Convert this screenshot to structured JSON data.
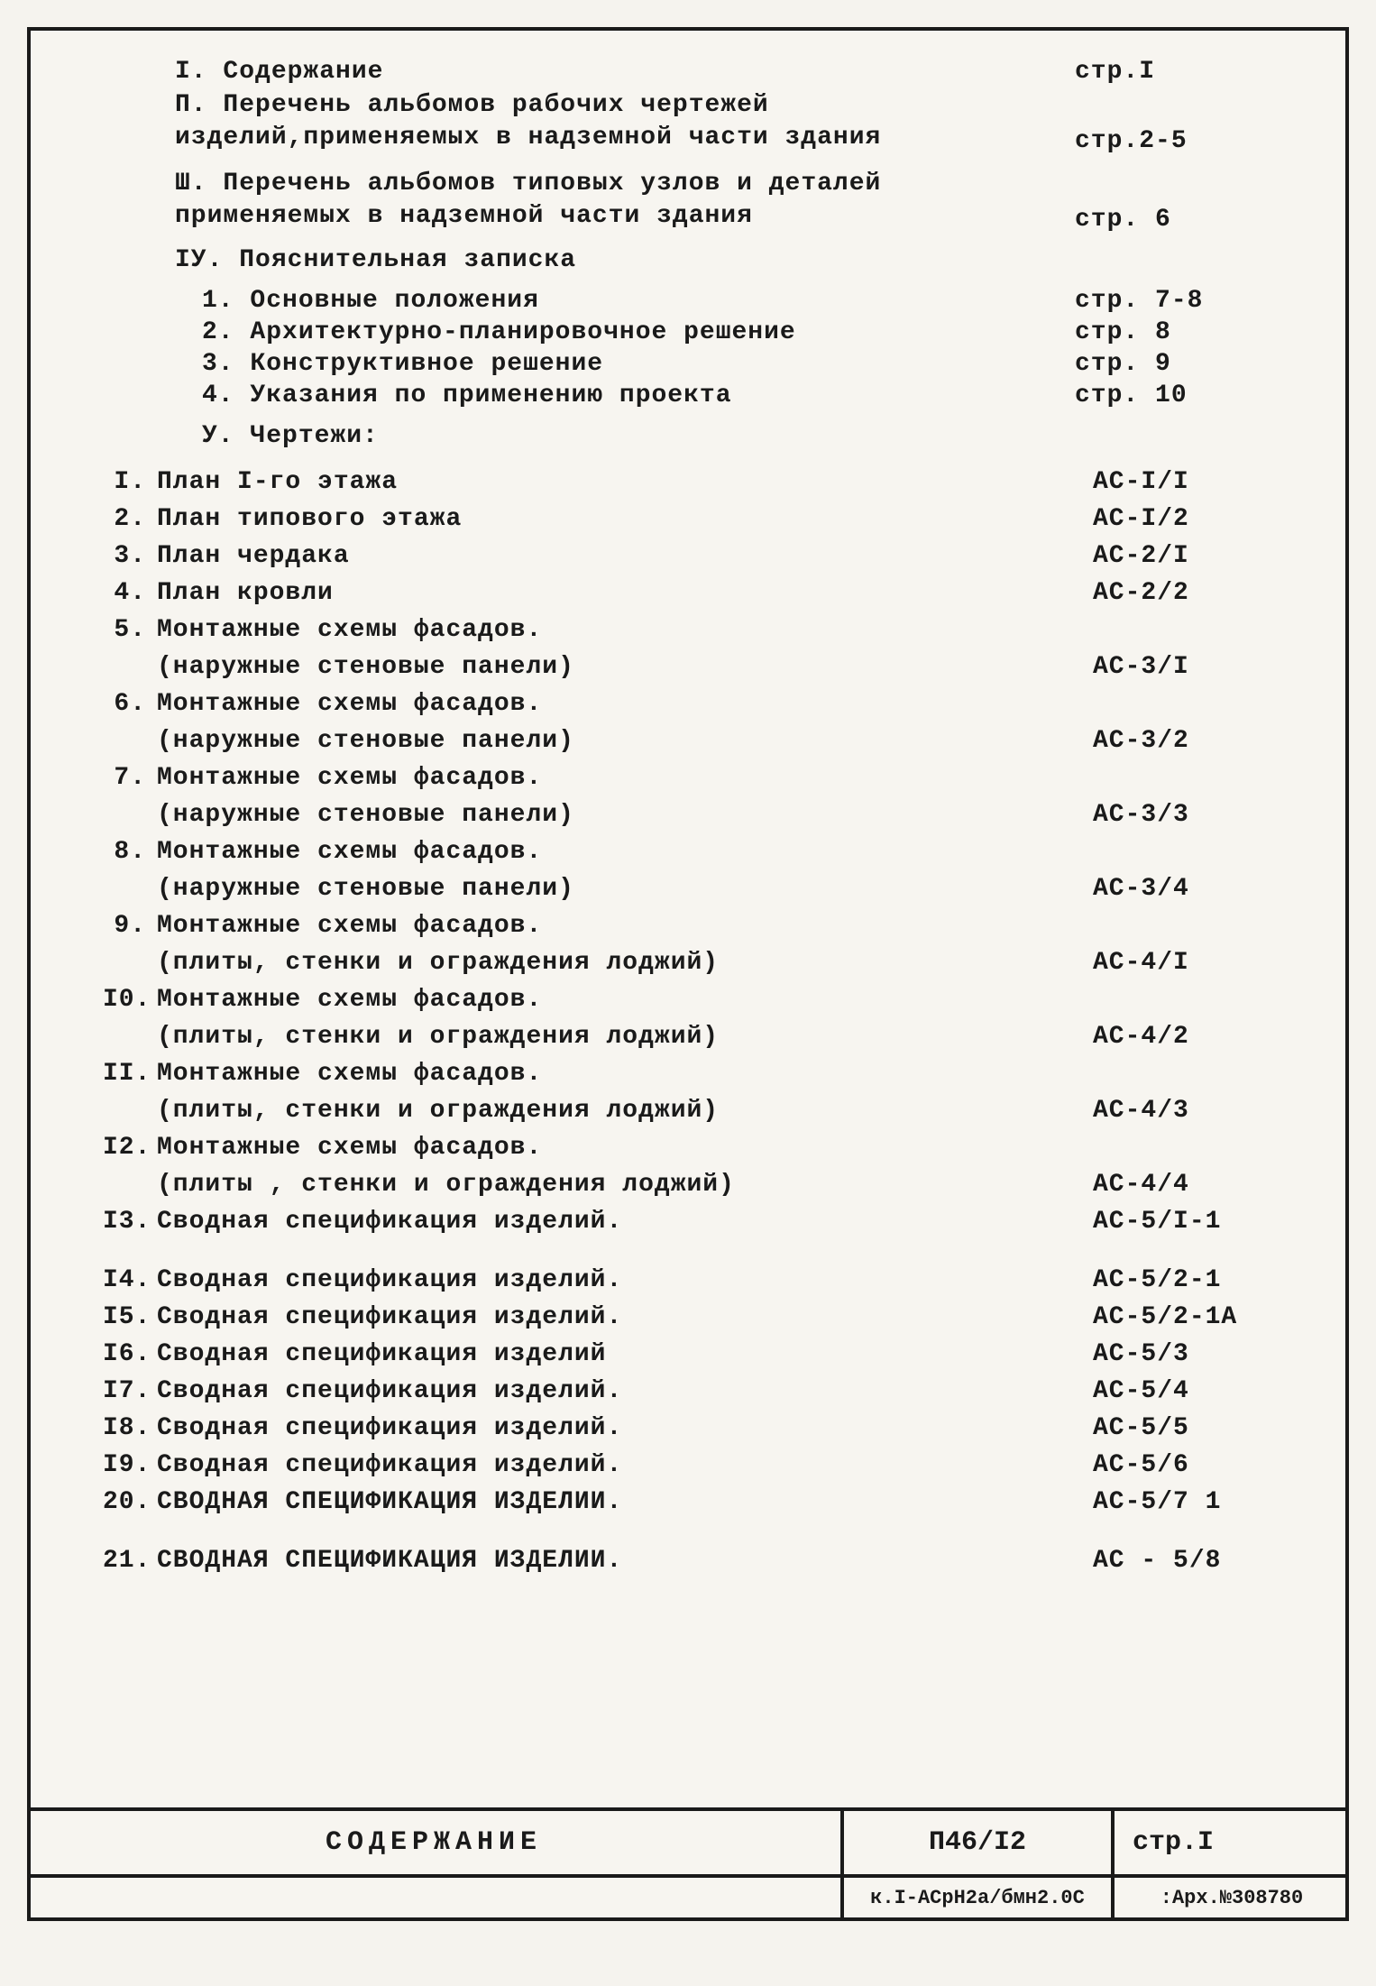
{
  "sections": {
    "s1": {
      "num": "І.",
      "label": "Содержание",
      "page": "стр.І"
    },
    "s2": {
      "num": "П.",
      "label": "Перечень альбомов рабочих чертежей изделий,применяемых в надземной части здания",
      "page": "стр.2-5"
    },
    "s3": {
      "num": "Ш.",
      "label": "Перечень альбомов типовых узлов и деталей применяемых в надземной части здания",
      "page": "стр. 6"
    },
    "s4": {
      "num": "ІУ.",
      "label": "Пояснительная записка"
    },
    "s4_1": {
      "num": "1.",
      "label": "Основные положения",
      "page": "стр. 7-8"
    },
    "s4_2": {
      "num": "2.",
      "label": "Архитектурно-планировочное решение",
      "page": "стр. 8"
    },
    "s4_3": {
      "num": "3.",
      "label": "Конструктивное решение",
      "page": "стр. 9"
    },
    "s4_4": {
      "num": "4.",
      "label": "Указания по применению проекта",
      "page": "стр. 10"
    },
    "s5": {
      "num": "У.",
      "label": "Чертежи:"
    }
  },
  "drawings": [
    {
      "num": "І.",
      "label": "План І-го этажа",
      "code": "АС-І/І"
    },
    {
      "num": "2.",
      "label": "План типового этажа",
      "code": "АС-І/2"
    },
    {
      "num": "3.",
      "label": "План чердака",
      "code": "АС-2/І"
    },
    {
      "num": "4.",
      "label": "План кровли",
      "code": "АС-2/2"
    },
    {
      "num": "5.",
      "label": "Монтажные схемы фасадов.",
      "sub": "(наружные стеновые панели)",
      "code": "АС-3/І"
    },
    {
      "num": "6.",
      "label": "Монтажные схемы фасадов.",
      "sub": "(наружные стеновые панели)",
      "code": "АС-3/2"
    },
    {
      "num": "7.",
      "label": "Монтажные схемы фасадов.",
      "sub": "(наружные стеновые панели)",
      "code": "АС-3/3"
    },
    {
      "num": "8.",
      "label": "Монтажные схемы фасадов.",
      "sub": "(наружные стеновые панели)",
      "code": "АС-3/4"
    },
    {
      "num": "9.",
      "label": "Монтажные схемы фасадов.",
      "sub": "(плиты, стенки и ограждения лоджий)",
      "code": "АС-4/І"
    },
    {
      "num": "І0.",
      "label": "Монтажные схемы фасадов.",
      "sub": "(плиты, стенки и ограждения лоджий)",
      "code": "АС-4/2"
    },
    {
      "num": "ІІ.",
      "label": "Монтажные схемы фасадов.",
      "sub": "(плиты, стенки и ограждения лоджий)",
      "code": "АС-4/3"
    },
    {
      "num": "І2.",
      "label": "Монтажные схемы фасадов.",
      "sub": "(плиты , стенки и ограждения лоджий)",
      "code": "АС-4/4"
    },
    {
      "num": "І3.",
      "label": "Сводная спецификация изделий.",
      "code": "АС-5/І-1"
    },
    {
      "num": "І4.",
      "label": "Сводная спецификация изделий.",
      "code": "АС-5/2-1"
    },
    {
      "num": "І5.",
      "label": "Сводная спецификация изделий.",
      "code": "АС-5/2-1А"
    },
    {
      "num": "І6.",
      "label": "Сводная спецификация изделий",
      "code": "АС-5/3"
    },
    {
      "num": "І7.",
      "label": "Сводная спецификация изделий.",
      "code": "АС-5/4"
    },
    {
      "num": "І8.",
      "label": "Сводная спецификация изделий.",
      "code": "АС-5/5"
    },
    {
      "num": "І9.",
      "label": "Сводная спецификация изделий.",
      "code": "АС-5/6"
    },
    {
      "num": "20.",
      "label": "СВОДНАЯ СПЕЦИФИКАЦИЯ ИЗДЕЛИИ.",
      "code": "АС-5/7 1"
    },
    {
      "num": "21.",
      "label": "СВОДНАЯ СПЕЦИФИКАЦИЯ ИЗДЕЛИИ.",
      "code": "АС - 5/8"
    }
  ],
  "title_block": {
    "main": "СОДЕРЖАНИЕ",
    "doc": "П46/І2",
    "page": "стр.І",
    "small1": "к.І-АСрН2а/бмн2.0С",
    "small2": ":Арх.№308780"
  },
  "style": {
    "fontsize_body": 28,
    "fontsize_title": 30,
    "color_text": "#1a1a1a",
    "color_bg": "#f7f5f0",
    "border_width": 4
  }
}
